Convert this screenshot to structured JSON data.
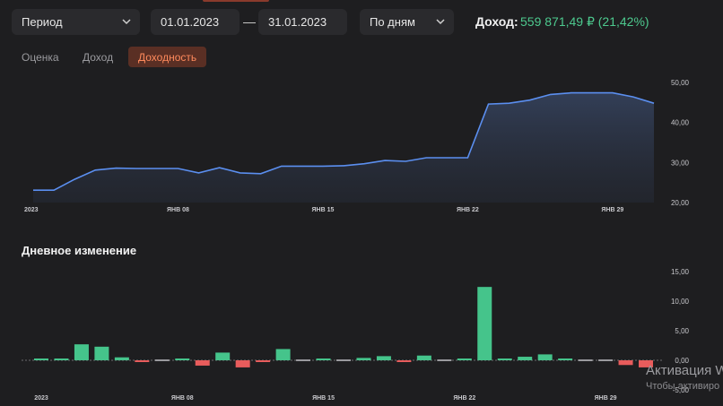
{
  "controls": {
    "period_label": "Период",
    "date_from": "01.01.2023",
    "date_separator": "—",
    "date_to": "31.01.2023",
    "granularity_label": "По дням"
  },
  "income": {
    "label": "Доход:",
    "value": "559 871,49 ₽ (21,42%)",
    "color": "#4dc98e"
  },
  "tabs": [
    {
      "label": "Оценка",
      "active": false
    },
    {
      "label": "Доход",
      "active": false
    },
    {
      "label": "Доходность",
      "active": true
    }
  ],
  "daily_change_title": "Дневное изменение",
  "watermark": {
    "line1": "Активация W",
    "line2": "Чтобы активиро"
  },
  "colors": {
    "line": "#5b8ff0",
    "positive": "#45c48b",
    "negative": "#e85c5c",
    "accent": "#ff8a5c"
  },
  "chart_data": [
    {
      "type": "area",
      "x": [
        "01.01",
        "02.01",
        "03.01",
        "04.01",
        "05.01",
        "06.01",
        "07.01",
        "08.01",
        "09.01",
        "10.01",
        "11.01",
        "12.01",
        "13.01",
        "14.01",
        "15.01",
        "16.01",
        "17.01",
        "18.01",
        "19.01",
        "20.01",
        "21.01",
        "22.01",
        "23.01",
        "24.01",
        "25.01",
        "26.01",
        "27.01",
        "28.01",
        "29.01",
        "30.01",
        "31.01"
      ],
      "values": [
        23.1,
        23.1,
        25.8,
        28.1,
        28.6,
        28.5,
        28.5,
        28.5,
        27.4,
        28.7,
        27.4,
        27.2,
        29.1,
        29.1,
        29.1,
        29.2,
        29.7,
        30.5,
        30.3,
        31.2,
        31.2,
        31.2,
        44.6,
        44.8,
        45.6,
        47.0,
        47.4,
        47.4,
        47.4,
        46.4,
        44.8
      ],
      "ylim": [
        20,
        50
      ],
      "y_ticks": [
        "50,00",
        "40,00",
        "30,00",
        "20,00"
      ],
      "x_ticks": [
        "2023",
        "ЯНВ 08",
        "ЯНВ 15",
        "ЯНВ 22",
        "ЯНВ 29"
      ],
      "grid": false
    },
    {
      "type": "bar",
      "title": "Дневное изменение",
      "x": [
        "01.01",
        "02.01",
        "03.01",
        "04.01",
        "05.01",
        "06.01",
        "07.01",
        "08.01",
        "09.01",
        "10.01",
        "11.01",
        "12.01",
        "13.01",
        "14.01",
        "15.01",
        "16.01",
        "17.01",
        "18.01",
        "19.01",
        "20.01",
        "21.01",
        "22.01",
        "23.01",
        "24.01",
        "25.01",
        "26.01",
        "27.01",
        "28.01",
        "29.01",
        "30.01",
        "31.01"
      ],
      "values": [
        0.1,
        0.1,
        2.7,
        2.3,
        0.5,
        -0.1,
        0,
        0.1,
        -0.9,
        1.3,
        -1.2,
        -0.2,
        1.9,
        0,
        0.1,
        0,
        0.4,
        0.7,
        -0.2,
        0.8,
        0,
        0.1,
        12.4,
        0.1,
        0.6,
        1.0,
        0.3,
        0,
        0,
        -0.8,
        -1.2
      ],
      "ylim": [
        -5,
        15
      ],
      "y_ticks": [
        "15,00",
        "10,00",
        "5,00",
        "0,00",
        "-5,00"
      ],
      "x_ticks": [
        "2023",
        "ЯНВ 08",
        "ЯНВ 15",
        "ЯНВ 22",
        "ЯНВ 29"
      ],
      "grid": false
    }
  ]
}
